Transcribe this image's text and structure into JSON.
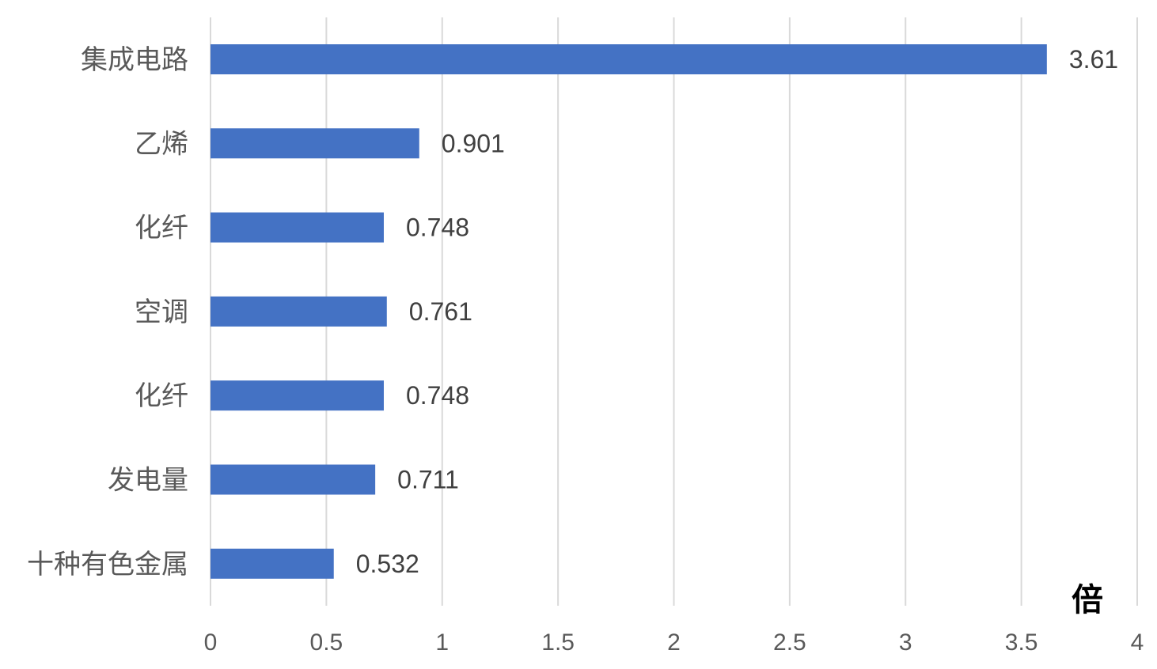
{
  "chart_data": {
    "type": "bar",
    "orientation": "horizontal",
    "categories": [
      "集成电路",
      "乙烯",
      "化纤",
      "空调",
      "化纤",
      "发电量",
      "十种有色金属"
    ],
    "values": [
      3.61,
      0.901,
      0.748,
      0.761,
      0.748,
      0.711,
      0.532
    ],
    "data_labels": [
      "3.61",
      "0.901",
      "0.748",
      "0.761",
      "0.748",
      "0.711",
      "0.532"
    ],
    "x_ticks": [
      "0",
      "0.5",
      "1",
      "1.5",
      "2",
      "2.5",
      "3",
      "3.5",
      "4"
    ],
    "xlim": [
      0,
      4
    ],
    "unit": "倍",
    "bar_color": "#4472c4",
    "grid": true,
    "legend": "none"
  }
}
